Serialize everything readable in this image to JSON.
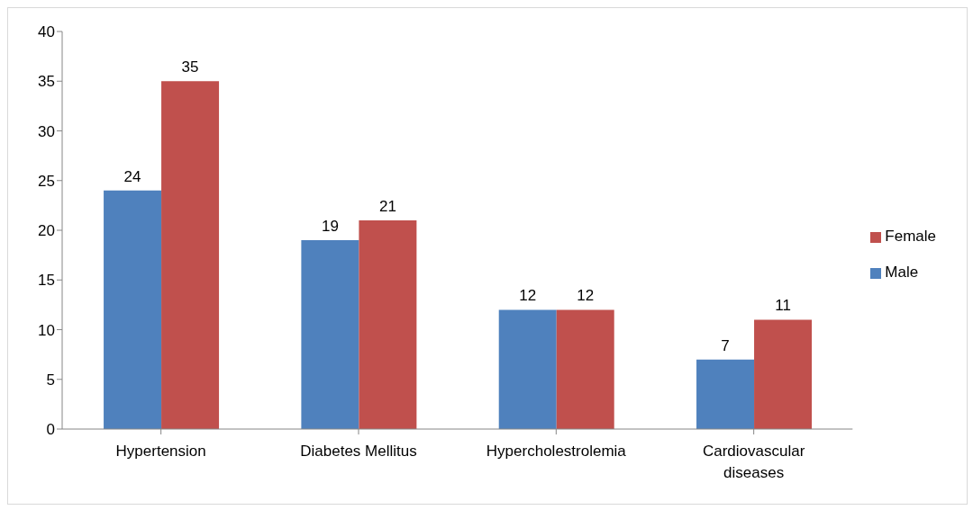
{
  "chart_data": {
    "type": "bar",
    "categories": [
      "Hypertension",
      "Diabetes Mellitus",
      "Hypercholestrolemia",
      "Cardiovascular diseases"
    ],
    "series": [
      {
        "name": "Male",
        "color": "#4f81bd",
        "values": [
          24,
          19,
          12,
          7
        ]
      },
      {
        "name": "Female",
        "color": "#c0504d",
        "values": [
          35,
          21,
          12,
          11
        ]
      }
    ],
    "ylim": [
      0,
      40
    ],
    "yticks": [
      0,
      5,
      10,
      15,
      20,
      25,
      30,
      35,
      40
    ],
    "grid": false,
    "legend": "right",
    "data_labels": true
  }
}
